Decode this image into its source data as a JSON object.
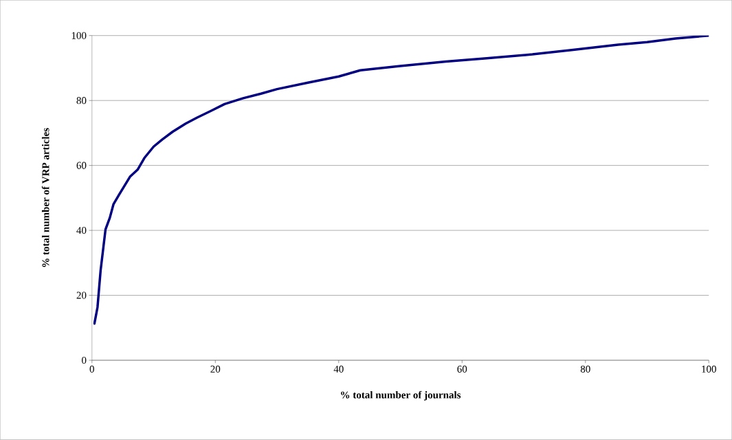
{
  "chart_data": {
    "type": "line",
    "xlabel": "%   total number of journals",
    "ylabel": "%  total number of  VRP articles",
    "x": [
      0.4,
      0.9,
      1.4,
      2.2,
      2.9,
      3.5,
      4.4,
      5.3,
      6.2,
      7.4,
      8.5,
      10,
      11.4,
      13.1,
      15.2,
      17,
      19.3,
      21.5,
      24.5,
      27.4,
      30,
      35,
      40,
      43.5,
      50,
      57.4,
      64,
      71.4,
      78,
      85.3,
      90,
      94.6,
      100
    ],
    "series": [
      {
        "color": "#000080",
        "values": [
          11.3,
          16.3,
          27.6,
          40.3,
          43.9,
          48.1,
          51,
          53.8,
          56.6,
          58.7,
          62.3,
          65.8,
          68,
          70.4,
          72.9,
          74.7,
          76.8,
          78.9,
          80.7,
          82.1,
          83.5,
          85.5,
          87.4,
          89.3,
          90.6,
          92,
          93,
          94.2,
          95.6,
          97.2,
          98,
          99.1,
          100
        ]
      }
    ],
    "xlim": [
      0,
      100
    ],
    "ylim": [
      0,
      100
    ],
    "xticks": [
      0,
      20,
      40,
      60,
      80,
      100
    ],
    "yticks": [
      0,
      20,
      40,
      60,
      80,
      100
    ],
    "grid": "y",
    "marker": "none",
    "line_style": "solid"
  }
}
